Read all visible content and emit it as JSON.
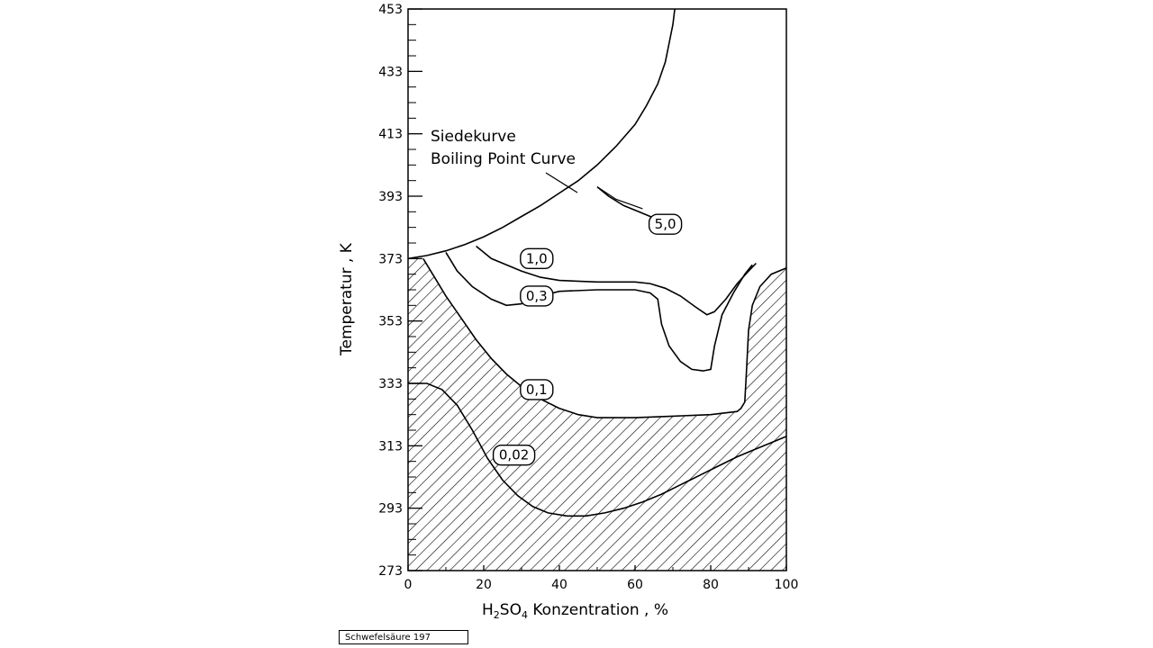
{
  "caption": "Schwefelsäure 197",
  "chart_data": {
    "type": "line",
    "xlabel_main": "H",
    "xlabel_sub1": "2",
    "xlabel_mid": "SO",
    "xlabel_sub2": "4",
    "xlabel_rest": " Konzentration , %",
    "ylabel": "Temperatur , K",
    "xlim": [
      0,
      100
    ],
    "ylim": [
      273,
      453
    ],
    "x_ticks": [
      0,
      20,
      40,
      60,
      80,
      100
    ],
    "y_ticks": [
      273,
      293,
      313,
      333,
      353,
      373,
      393,
      413,
      433,
      453
    ],
    "annotation_line1": "Siedekurve",
    "annotation_line2": "Boiling Point Curve",
    "boiling_curve": [
      [
        0,
        373
      ],
      [
        5,
        374
      ],
      [
        10,
        375.5
      ],
      [
        15,
        377.5
      ],
      [
        20,
        380
      ],
      [
        25,
        383
      ],
      [
        30,
        386.5
      ],
      [
        35,
        390
      ],
      [
        40,
        394
      ],
      [
        45,
        398
      ],
      [
        50,
        403
      ],
      [
        55,
        409
      ],
      [
        60,
        416
      ],
      [
        63,
        422
      ],
      [
        66,
        429
      ],
      [
        68,
        436
      ],
      [
        69,
        442
      ],
      [
        70,
        448
      ],
      [
        70.5,
        453
      ]
    ],
    "series": [
      {
        "name": "5,0",
        "values": [
          [
            50,
            396
          ],
          [
            53,
            393
          ],
          [
            57,
            390
          ],
          [
            61,
            388
          ],
          [
            65,
            386
          ]
        ]
      },
      {
        "name": "1,0",
        "values": [
          [
            18,
            377
          ],
          [
            22,
            373
          ],
          [
            26,
            371
          ],
          [
            30,
            369
          ],
          [
            35,
            367
          ],
          [
            40,
            366
          ],
          [
            50,
            365.5
          ],
          [
            60,
            365.5
          ],
          [
            64,
            365
          ],
          [
            68,
            363.5
          ],
          [
            72,
            361
          ],
          [
            76,
            357.5
          ],
          [
            79,
            355
          ],
          [
            81,
            356
          ],
          [
            84,
            360
          ],
          [
            87,
            365
          ],
          [
            90,
            369
          ],
          [
            92,
            371.5
          ]
        ]
      },
      {
        "name": "0,3",
        "values": [
          [
            10,
            375
          ],
          [
            13,
            369
          ],
          [
            17,
            364
          ],
          [
            22,
            360
          ],
          [
            26,
            358
          ],
          [
            30,
            358.5
          ],
          [
            35,
            361
          ],
          [
            40,
            362.5
          ],
          [
            50,
            363
          ],
          [
            60,
            363
          ],
          [
            64,
            362
          ],
          [
            66,
            360
          ],
          [
            67,
            352
          ],
          [
            69,
            345
          ],
          [
            72,
            340
          ],
          [
            75,
            337.5
          ],
          [
            78,
            337
          ],
          [
            80,
            337.5
          ],
          [
            81,
            345
          ],
          [
            83,
            355
          ],
          [
            86,
            362
          ],
          [
            89,
            368
          ],
          [
            91,
            371
          ]
        ]
      },
      {
        "name": "0,1",
        "values": [
          [
            4,
            373
          ],
          [
            7,
            367
          ],
          [
            10,
            361
          ],
          [
            14,
            354
          ],
          [
            18,
            347
          ],
          [
            22,
            341
          ],
          [
            26,
            336
          ],
          [
            30,
            332
          ],
          [
            35,
            328
          ],
          [
            40,
            325
          ],
          [
            45,
            323
          ],
          [
            50,
            322
          ],
          [
            60,
            322
          ],
          [
            70,
            322.5
          ],
          [
            80,
            323
          ],
          [
            87,
            324
          ],
          [
            88,
            325
          ],
          [
            89,
            327
          ],
          [
            89.5,
            338
          ],
          [
            90,
            350
          ],
          [
            91,
            358
          ],
          [
            93,
            364
          ],
          [
            96,
            368
          ],
          [
            100,
            370
          ]
        ]
      },
      {
        "name": "0,02",
        "values": [
          [
            0,
            333
          ],
          [
            5,
            333
          ],
          [
            9,
            331
          ],
          [
            13,
            326
          ],
          [
            17,
            318
          ],
          [
            21,
            309
          ],
          [
            25,
            302
          ],
          [
            29,
            297
          ],
          [
            33,
            293.5
          ],
          [
            37,
            291.5
          ],
          [
            42,
            290.5
          ],
          [
            47,
            290.5
          ],
          [
            52,
            291.5
          ],
          [
            57,
            293
          ],
          [
            62,
            295
          ],
          [
            67,
            297.5
          ],
          [
            72,
            300.5
          ],
          [
            77,
            303.5
          ],
          [
            82,
            306.5
          ],
          [
            87,
            309.5
          ],
          [
            92,
            312
          ],
          [
            97,
            314.5
          ],
          [
            100,
            316
          ]
        ]
      }
    ],
    "hatch_region_upper": [
      [
        0,
        373
      ],
      [
        4,
        373
      ],
      [
        7,
        367
      ],
      [
        10,
        361
      ],
      [
        14,
        354
      ],
      [
        18,
        347
      ],
      [
        22,
        341
      ],
      [
        26,
        336
      ],
      [
        30,
        332
      ],
      [
        35,
        328
      ],
      [
        40,
        325
      ],
      [
        45,
        323
      ],
      [
        50,
        322
      ],
      [
        60,
        322
      ],
      [
        70,
        322.5
      ],
      [
        80,
        323
      ],
      [
        87,
        324
      ],
      [
        88,
        325
      ],
      [
        89,
        327
      ],
      [
        89.5,
        338
      ],
      [
        90,
        350
      ],
      [
        91,
        358
      ],
      [
        93,
        364
      ],
      [
        96,
        368
      ],
      [
        100,
        370
      ]
    ],
    "labels": [
      {
        "text": "5,0",
        "at": [
          68,
          384
        ]
      },
      {
        "text": "1,0",
        "at": [
          34,
          373
        ]
      },
      {
        "text": "0,3",
        "at": [
          34,
          361
        ]
      },
      {
        "text": "0,1",
        "at": [
          34,
          331
        ]
      },
      {
        "text": "0,02",
        "at": [
          28,
          310
        ]
      }
    ]
  }
}
